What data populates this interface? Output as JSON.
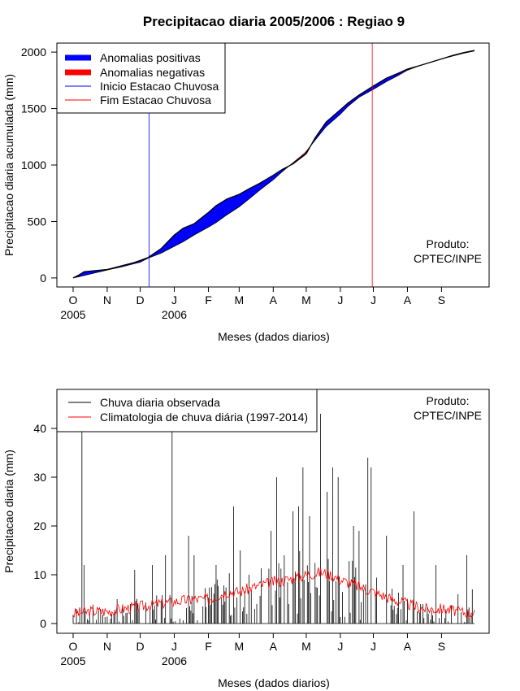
{
  "title": "Precipitacao diaria 2005/2006 : Regiao 9",
  "credit": {
    "line1": "Produto:",
    "line2": "CPTEC/INPE"
  },
  "chart_data": [
    {
      "type": "area",
      "ylabel": "Precipitacao diaria acumulada (mm)",
      "xlabel": "Meses (dados diarios)",
      "ylim": [
        -80,
        2080
      ],
      "yticks": [
        0,
        500,
        1000,
        1500,
        2000
      ],
      "x_domain_days": [
        0,
        365
      ],
      "month_ticks": [
        {
          "label": "O",
          "day": 0
        },
        {
          "label": "N",
          "day": 31
        },
        {
          "label": "D",
          "day": 61
        },
        {
          "label": "J",
          "day": 92
        },
        {
          "label": "F",
          "day": 123
        },
        {
          "label": "M",
          "day": 151
        },
        {
          "label": "A",
          "day": 182
        },
        {
          "label": "M",
          "day": 212
        },
        {
          "label": "J",
          "day": 243
        },
        {
          "label": "J",
          "day": 273
        },
        {
          "label": "A",
          "day": 304
        },
        {
          "label": "S",
          "day": 335
        }
      ],
      "year_labels": [
        {
          "label": "2005",
          "day": 0
        },
        {
          "label": "2006",
          "day": 92
        }
      ],
      "legend": [
        {
          "label": "Anomalias positivas",
          "color": "#0000ff",
          "style": "thick"
        },
        {
          "label": "Anomalias negativas",
          "color": "#ff0000",
          "style": "thick"
        },
        {
          "label": "Inicio Estacao Chuvosa",
          "color": "#0000ff",
          "style": "thin"
        },
        {
          "label": "Fim Estacao Chuvosa",
          "color": "#ff0000",
          "style": "thin"
        }
      ],
      "inicio_estacao_day": 69,
      "fim_estacao_day": 272,
      "series": [
        {
          "name": "Precipitacao observada acumulada",
          "x": [
            0,
            5,
            10,
            20,
            31,
            45,
            55,
            61,
            68,
            80,
            92,
            100,
            110,
            123,
            130,
            140,
            151,
            160,
            170,
            182,
            190,
            200,
            210,
            212,
            220,
            230,
            243,
            250,
            260,
            273,
            285,
            295,
            304,
            315,
            325,
            335,
            345,
            355,
            365
          ],
          "y": [
            0,
            25,
            55,
            65,
            75,
            110,
            135,
            155,
            180,
            260,
            380,
            440,
            480,
            580,
            640,
            700,
            740,
            790,
            840,
            910,
            960,
            1010,
            1085,
            1100,
            1240,
            1380,
            1490,
            1550,
            1620,
            1700,
            1770,
            1810,
            1850,
            1880,
            1910,
            1940,
            1970,
            1995,
            2015
          ]
        },
        {
          "name": "Climatologia acumulada",
          "x": [
            0,
            5,
            10,
            20,
            31,
            45,
            55,
            61,
            68,
            80,
            92,
            100,
            110,
            123,
            130,
            140,
            151,
            160,
            170,
            182,
            190,
            200,
            210,
            212,
            220,
            230,
            243,
            250,
            260,
            273,
            285,
            295,
            304,
            315,
            325,
            335,
            345,
            355,
            365
          ],
          "y": [
            0,
            10,
            22,
            45,
            70,
            100,
            125,
            140,
            175,
            220,
            280,
            320,
            380,
            450,
            490,
            560,
            630,
            700,
            780,
            870,
            940,
            1020,
            1100,
            1120,
            1220,
            1340,
            1450,
            1520,
            1600,
            1670,
            1740,
            1790,
            1840,
            1880,
            1910,
            1940,
            1965,
            1990,
            2010
          ]
        }
      ]
    },
    {
      "type": "bar",
      "ylabel": "Precipitacao diaria (mm)",
      "xlabel": "Meses (dados diarios)",
      "ylim": [
        -2,
        48
      ],
      "yticks": [
        0,
        10,
        20,
        30,
        40
      ],
      "legend": [
        {
          "label": "Chuva diaria observada",
          "color": "#000000"
        },
        {
          "label": "Climatologia de chuva diária (1997-2014)",
          "color": "#ff0000"
        }
      ],
      "observed_peaks": [
        {
          "day": 3,
          "value": 3
        },
        {
          "day": 8,
          "value": 42
        },
        {
          "day": 10,
          "value": 12
        },
        {
          "day": 25,
          "value": 3
        },
        {
          "day": 40,
          "value": 5
        },
        {
          "day": 52,
          "value": 4
        },
        {
          "day": 56,
          "value": 11
        },
        {
          "day": 72,
          "value": 12
        },
        {
          "day": 84,
          "value": 14
        },
        {
          "day": 90,
          "value": 42
        },
        {
          "day": 105,
          "value": 18
        },
        {
          "day": 110,
          "value": 14
        },
        {
          "day": 130,
          "value": 12
        },
        {
          "day": 146,
          "value": 24
        },
        {
          "day": 152,
          "value": 15
        },
        {
          "day": 160,
          "value": 10
        },
        {
          "day": 180,
          "value": 19
        },
        {
          "day": 185,
          "value": 30
        },
        {
          "day": 192,
          "value": 14
        },
        {
          "day": 200,
          "value": 23
        },
        {
          "day": 205,
          "value": 24
        },
        {
          "day": 209,
          "value": 32
        },
        {
          "day": 215,
          "value": 22
        },
        {
          "day": 225,
          "value": 43
        },
        {
          "day": 231,
          "value": 27
        },
        {
          "day": 236,
          "value": 32
        },
        {
          "day": 241,
          "value": 30
        },
        {
          "day": 255,
          "value": 20
        },
        {
          "day": 260,
          "value": 19
        },
        {
          "day": 268,
          "value": 34
        },
        {
          "day": 271,
          "value": 32
        },
        {
          "day": 285,
          "value": 18
        },
        {
          "day": 300,
          "value": 12
        },
        {
          "day": 310,
          "value": 23
        },
        {
          "day": 330,
          "value": 12
        },
        {
          "day": 350,
          "value": 6
        },
        {
          "day": 358,
          "value": 14
        },
        {
          "day": 363,
          "value": 7
        }
      ],
      "climatology": {
        "x": [
          0,
          15,
          31,
          45,
          61,
          75,
          92,
          110,
          123,
          140,
          151,
          165,
          182,
          195,
          212,
          225,
          235,
          243,
          255,
          273,
          290,
          304,
          320,
          335,
          350,
          365
        ],
        "y": [
          2,
          2.5,
          2.5,
          3,
          3.5,
          4,
          4.5,
          5,
          5,
          6.5,
          6.5,
          7.5,
          8.5,
          9,
          10,
          10.5,
          10,
          9,
          8,
          6.5,
          5,
          4,
          3,
          3,
          2.5,
          2
        ]
      }
    }
  ]
}
